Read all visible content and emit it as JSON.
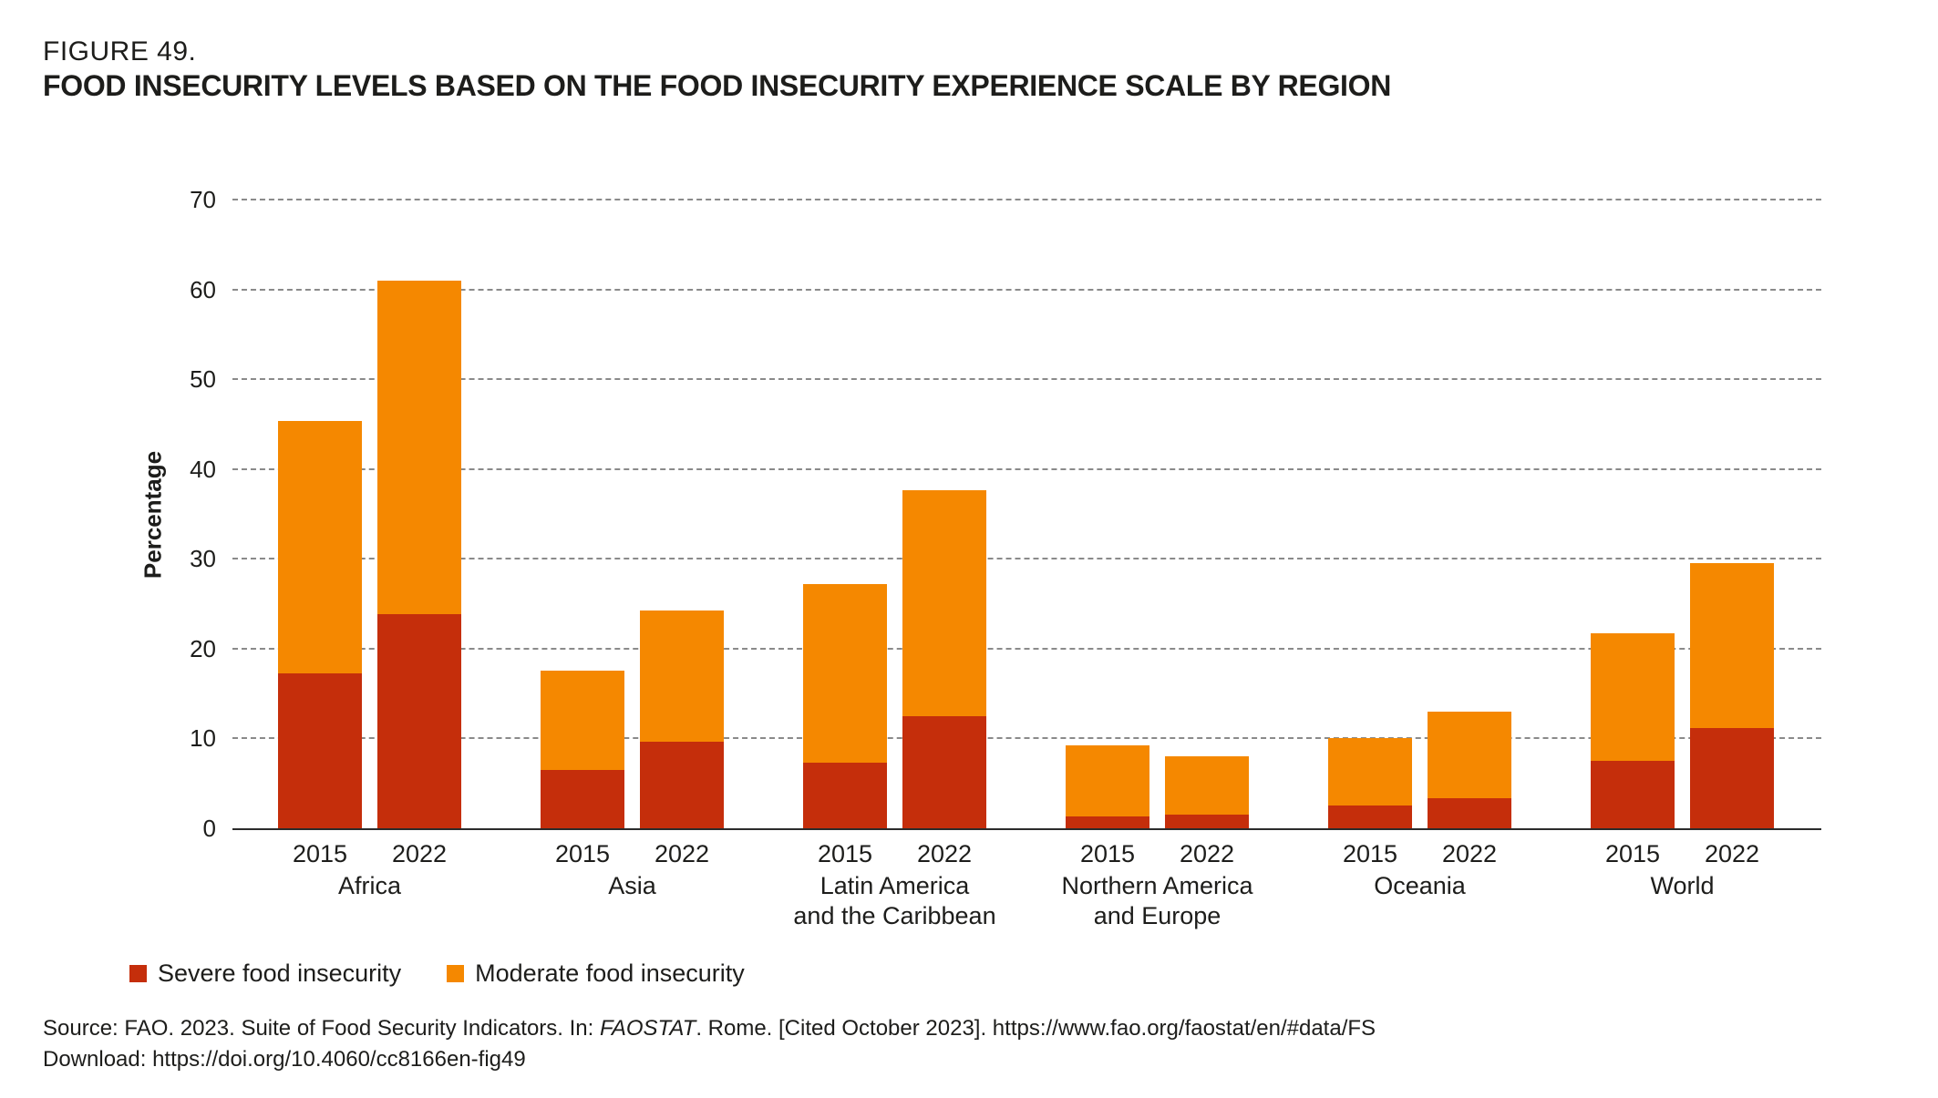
{
  "header": {
    "figure_label": "FIGURE 49.",
    "title": "FOOD INSECURITY LEVELS BASED ON THE FOOD INSECURITY EXPERIENCE SCALE BY REGION"
  },
  "chart_data": {
    "type": "bar",
    "stacked": true,
    "title": "FOOD INSECURITY LEVELS BASED ON THE FOOD INSECURITY EXPERIENCE SCALE BY REGION",
    "ylabel": "Percentage",
    "ylim": [
      0,
      70
    ],
    "yticks": [
      0,
      10,
      20,
      30,
      40,
      50,
      60,
      70
    ],
    "grid": "horizontal-dashed",
    "legend_position": "bottom-left",
    "series": [
      {
        "name": "Severe food insecurity",
        "color": "#C52E0B"
      },
      {
        "name": "Moderate food insecurity",
        "color": "#F58800"
      }
    ],
    "years": [
      "2015",
      "2022"
    ],
    "groups": [
      {
        "region": "Africa",
        "region_lines": [
          "Africa"
        ],
        "values": [
          {
            "year": "2015",
            "severe": 17.2,
            "moderate": 28.2,
            "total": 45.4
          },
          {
            "year": "2022",
            "severe": 23.8,
            "moderate": 37.2,
            "total": 61.0
          }
        ]
      },
      {
        "region": "Asia",
        "region_lines": [
          "Asia"
        ],
        "values": [
          {
            "year": "2015",
            "severe": 6.5,
            "moderate": 11.1,
            "total": 17.6
          },
          {
            "year": "2022",
            "severe": 9.6,
            "moderate": 14.6,
            "total": 24.2
          }
        ]
      },
      {
        "region": "Latin America and the Caribbean",
        "region_lines": [
          "Latin America",
          "and the Caribbean"
        ],
        "values": [
          {
            "year": "2015",
            "severe": 7.3,
            "moderate": 19.9,
            "total": 27.2
          },
          {
            "year": "2022",
            "severe": 12.5,
            "moderate": 25.1,
            "total": 37.6
          }
        ]
      },
      {
        "region": "Northern America and Europe",
        "region_lines": [
          "Northern America",
          "and Europe"
        ],
        "values": [
          {
            "year": "2015",
            "severe": 1.3,
            "moderate": 7.9,
            "total": 9.2
          },
          {
            "year": "2022",
            "severe": 1.5,
            "moderate": 6.5,
            "total": 8.0
          }
        ]
      },
      {
        "region": "Oceania",
        "region_lines": [
          "Oceania"
        ],
        "values": [
          {
            "year": "2015",
            "severe": 2.5,
            "moderate": 7.5,
            "total": 10.0
          },
          {
            "year": "2022",
            "severe": 3.3,
            "moderate": 9.7,
            "total": 13.0
          }
        ]
      },
      {
        "region": "World",
        "region_lines": [
          "World"
        ],
        "values": [
          {
            "year": "2015",
            "severe": 7.5,
            "moderate": 14.2,
            "total": 21.7
          },
          {
            "year": "2022",
            "severe": 11.2,
            "moderate": 18.3,
            "total": 29.5
          }
        ]
      }
    ]
  },
  "source": {
    "line1_prefix": "Source: FAO. 2023. Suite of Food Security Indicators. In: ",
    "line1_italic": "FAOSTAT",
    "line1_suffix": ". Rome. [Cited October 2023]. https://www.fao.org/faostat/en/#data/FS",
    "line2": "Download: https://doi.org/10.4060/cc8166en-fig49"
  }
}
